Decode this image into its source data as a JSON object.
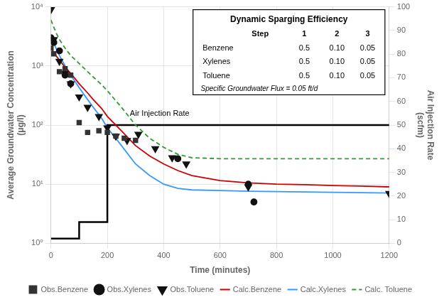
{
  "chart_data": {
    "type": "line",
    "xlabel": "Time (minutes)",
    "ylabel": "Average Groundwater Concentration\n(μg/l)",
    "y2label": "Air Injection Rate\n(scfm)",
    "xlim": [
      0,
      1200
    ],
    "xticks": [
      0,
      200,
      400,
      600,
      800,
      1000,
      1200
    ],
    "log": "y",
    "ylim": [
      1,
      10000
    ],
    "yticks": [
      {
        "value": 1,
        "label": "10⁰"
      },
      {
        "value": 10,
        "label": "10¹"
      },
      {
        "value": 100,
        "label": "10²"
      },
      {
        "value": 1000,
        "label": "10³"
      },
      {
        "value": 10000,
        "label": "10⁴"
      }
    ],
    "y2lim": [
      0,
      100
    ],
    "y2ticks": [
      0,
      10,
      20,
      30,
      40,
      50,
      60,
      70,
      80,
      90,
      100
    ],
    "grid": true,
    "legend": "bottom",
    "series": [
      {
        "type": "line",
        "color": "#000000",
        "axis": "y2",
        "line_style": "solid",
        "x": [
          0,
          100,
          100,
          200,
          200,
          1200
        ],
        "values": [
          2,
          2,
          9,
          9,
          50,
          50
        ]
      },
      {
        "name": "Obs.Benzene",
        "type": "scatter",
        "color": "#333333",
        "marker": "square",
        "x": [
          0,
          10,
          30,
          50,
          70,
          100,
          130,
          170,
          200,
          230,
          260,
          300
        ],
        "values": [
          2000,
          1600,
          800,
          900,
          700,
          110,
          75,
          80,
          75,
          65,
          60,
          55
        ]
      },
      {
        "name": "Calc.Benzene",
        "type": "line",
        "color": "#cc0000",
        "line_style": "solid",
        "x": [
          0,
          10,
          20,
          30,
          50,
          70,
          100,
          130,
          150,
          180,
          200,
          250,
          300,
          350,
          400,
          450,
          500,
          600,
          700,
          800,
          900,
          1000,
          1100,
          1200
        ],
        "values": [
          2000,
          1700,
          1450,
          1250,
          950,
          750,
          500,
          350,
          270,
          190,
          140,
          80,
          45,
          30,
          22,
          17,
          14,
          11.5,
          10.5,
          10,
          9.8,
          9.5,
          9.3,
          9.0
        ]
      },
      {
        "name": "Obs.Xylenes",
        "type": "scatter",
        "color": "#111111",
        "marker": "circle",
        "x": [
          0,
          10,
          30,
          50,
          70,
          450,
          700,
          720
        ],
        "values": [
          3000,
          2500,
          1800,
          700,
          500,
          27,
          10,
          5
        ]
      },
      {
        "name": "Calc.Xylenes",
        "type": "line",
        "color": "#3399ff",
        "line_style": "solid",
        "x": [
          0,
          10,
          20,
          30,
          50,
          70,
          100,
          130,
          150,
          180,
          200,
          250,
          300,
          350,
          400,
          450,
          500,
          600,
          700,
          800,
          900,
          1000,
          1100,
          1200
        ],
        "values": [
          3000,
          2400,
          1900,
          1500,
          1000,
          700,
          430,
          270,
          200,
          130,
          90,
          45,
          22,
          14,
          10,
          8.5,
          8,
          7.8,
          7.6,
          7.5,
          7.4,
          7.3,
          7.2,
          7.1
        ]
      },
      {
        "name": "Obs.Toluene",
        "type": "scatter",
        "color": "#111111",
        "marker": "triangle_down",
        "x": [
          0,
          10,
          30,
          50,
          70,
          100,
          130,
          170,
          200,
          230,
          270,
          310,
          370,
          430,
          480,
          700,
          1200
        ],
        "values": [
          9000,
          2800,
          1200,
          750,
          500,
          300,
          200,
          140,
          90,
          65,
          55,
          70,
          40,
          28,
          22,
          9,
          7
        ]
      },
      {
        "name": "Calc. Toluene",
        "type": "line",
        "color": "#339933",
        "line_style": "dashed",
        "x": [
          0,
          10,
          20,
          30,
          50,
          70,
          100,
          130,
          150,
          180,
          200,
          250,
          300,
          350,
          400,
          450,
          500,
          600,
          700,
          800,
          900,
          1000,
          1100,
          1200
        ],
        "values": [
          6000,
          4500,
          3500,
          2800,
          2000,
          1500,
          1100,
          800,
          650,
          480,
          380,
          200,
          100,
          60,
          42,
          32,
          28,
          27,
          27,
          27,
          27,
          27,
          27,
          27
        ]
      }
    ],
    "annotations": [
      {
        "text": "Air Injection Rate",
        "x": 280,
        "y": 54,
        "axis": "y2"
      }
    ],
    "table": {
      "title": "Dynamic Sparging Efficiency",
      "columns": [
        "Step",
        "1",
        "2",
        "3"
      ],
      "rows": [
        [
          "Benzene",
          "0.5",
          "0.10",
          "0.05"
        ],
        [
          "Xylenes",
          "0.5",
          "0.10",
          "0.05"
        ],
        [
          "Toluene",
          "0.5",
          "0.10",
          "0.05"
        ]
      ],
      "note": "Specific Groundwater Flux = 0.05 ft/d"
    }
  }
}
